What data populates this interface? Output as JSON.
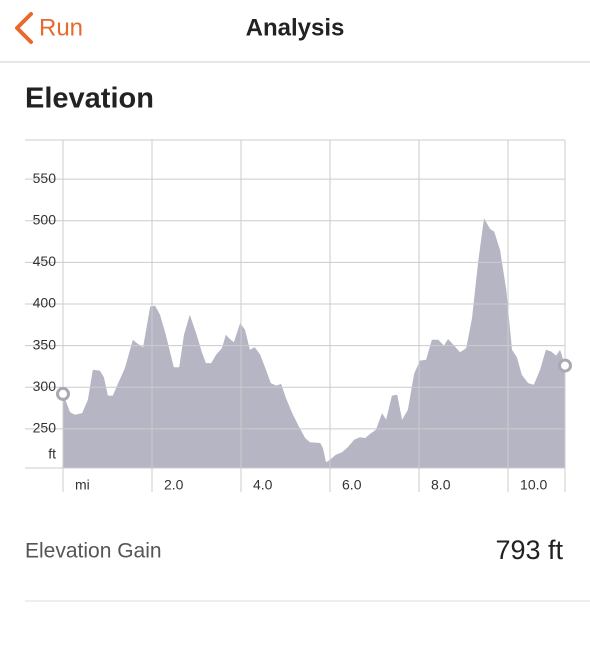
{
  "nav": {
    "back": "Run",
    "title": "Analysis"
  },
  "section": {
    "title": "Elevation"
  },
  "chart_data": {
    "type": "area",
    "x_label": "mi",
    "y_label": "ft",
    "x": [
      0,
      0.16,
      0.27,
      0.43,
      0.56,
      0.67,
      0.83,
      0.92,
      1.01,
      1.12,
      1.24,
      1.39,
      1.57,
      1.66,
      1.8,
      1.96,
      2.07,
      2.18,
      2.31,
      2.49,
      2.61,
      2.72,
      2.85,
      2.99,
      3.12,
      3.21,
      3.33,
      3.44,
      3.57,
      3.66,
      3.75,
      3.84,
      3.98,
      4.09,
      4.2,
      4.31,
      4.43,
      4.54,
      4.67,
      4.79,
      4.9,
      5.01,
      5.15,
      5.28,
      5.44,
      5.55,
      5.78,
      5.84,
      5.91,
      6,
      6.13,
      6.27,
      6.4,
      6.54,
      6.67,
      6.79,
      6.9,
      7.03,
      7.17,
      7.26,
      7.39,
      7.51,
      7.62,
      7.75,
      7.89,
      8.02,
      8.16,
      8.29,
      8.43,
      8.56,
      8.65,
      8.79,
      8.92,
      9.06,
      9.19,
      9.33,
      9.46,
      9.6,
      9.69,
      9.82,
      9.96,
      10.09,
      10.2,
      10.31,
      10.45,
      10.58,
      10.72,
      10.85,
      10.97,
      11.08,
      11.17,
      11.28
    ],
    "values": [
      292,
      270,
      267,
      269,
      285,
      321,
      320,
      312,
      290,
      290,
      305,
      323,
      357,
      353,
      348,
      397,
      398,
      387,
      363,
      324,
      324,
      363,
      387,
      365,
      342,
      329,
      329,
      339,
      347,
      363,
      358,
      354,
      377,
      369,
      345,
      348,
      339,
      324,
      305,
      302,
      304,
      287,
      269,
      255,
      239,
      234,
      233,
      227,
      210,
      213,
      219,
      222,
      228,
      237,
      240,
      239,
      244,
      249,
      269,
      261,
      290,
      291,
      261,
      273,
      316,
      332,
      333,
      357,
      357,
      350,
      358,
      350,
      342,
      347,
      383,
      451,
      503,
      490,
      487,
      465,
      417,
      345,
      336,
      315,
      305,
      303,
      321,
      345,
      343,
      338,
      345,
      326
    ],
    "color": "#b6b5c4",
    "xlim": [
      0,
      11.28
    ],
    "xticks": [
      {
        "value": 2,
        "label": "2.0"
      },
      {
        "value": 4,
        "label": "4.0"
      },
      {
        "value": 6,
        "label": "6.0"
      },
      {
        "value": 8,
        "label": "8.0"
      },
      {
        "value": 10,
        "label": "10.0"
      }
    ],
    "ylim": [
      203,
      597
    ],
    "yticks": [
      250,
      300,
      350,
      400,
      450,
      500,
      550
    ],
    "grid": true
  },
  "stats": {
    "label": "Elevation Gain",
    "value": "793 ft"
  }
}
